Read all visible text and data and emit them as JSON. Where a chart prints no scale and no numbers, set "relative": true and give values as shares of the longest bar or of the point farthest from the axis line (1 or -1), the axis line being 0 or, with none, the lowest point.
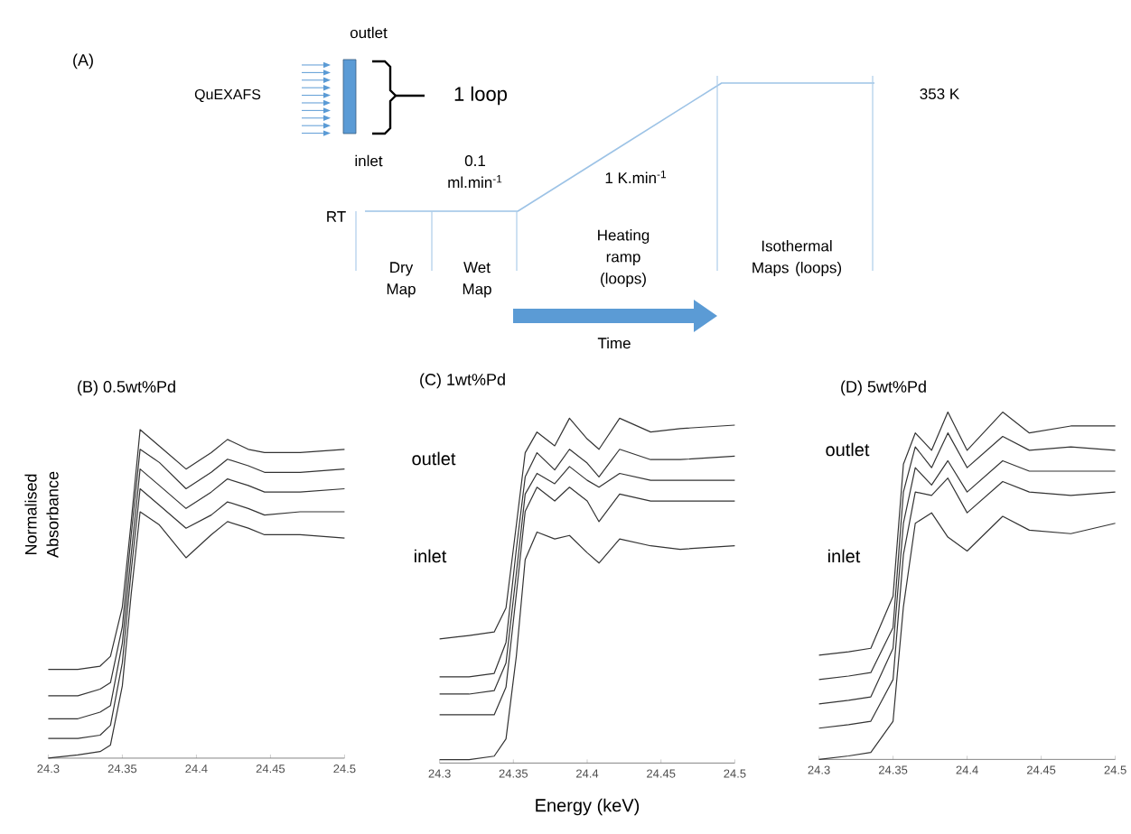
{
  "chart_data": [
    {
      "type": "line",
      "relative": true,
      "tick_labels": false,
      "categories": [
        null,
        null,
        null,
        null,
        null,
        null,
        null,
        null,
        null,
        null,
        null
      ],
      "series": [
        {
          "color": "#9dc3e6",
          "values": [
            0,
            0,
            0,
            0,
            0.25,
            0.5,
            0.75,
            1,
            1,
            1,
            1
          ]
        }
      ],
      "annotations": [
        "QuEXAFS",
        "outlet",
        "inlet",
        "1 loop",
        "0.1 ml.min$^{-1}$",
        "1 K.min$^{-1}$",
        "RT",
        "353 K",
        "Dry Map",
        "Wet Map",
        "Heating ramp (loops)",
        "Isothermal Maps (loops)",
        "Time",
        "(A)"
      ]
    },
    {
      "type": "line",
      "title": "(B) 0.5wt%Pd",
      "ylabel": "Normalised Absorbance",
      "relative": true,
      "tick_labels": "x",
      "x": [
        24.3,
        24.32,
        24.335,
        24.342,
        24.35,
        24.356,
        24.362,
        24.375,
        24.393,
        24.41,
        24.421,
        24.435,
        24.446,
        24.47,
        24.5
      ],
      "xlim": [
        24.3,
        24.5
      ],
      "xticks": [
        24.3,
        24.35,
        24.4,
        24.45,
        24.5
      ],
      "series": [
        {
          "color": "#333333",
          "values": [
            0.27,
            0.27,
            0.28,
            0.31,
            0.46,
            0.72,
            1.0,
            0.95,
            0.88,
            0.93,
            0.97,
            0.94,
            0.93,
            0.93,
            0.94
          ]
        },
        {
          "color": "#333333",
          "values": [
            0.19,
            0.19,
            0.21,
            0.23,
            0.4,
            0.68,
            0.94,
            0.9,
            0.82,
            0.87,
            0.91,
            0.89,
            0.87,
            0.87,
            0.88
          ]
        },
        {
          "color": "#333333",
          "values": [
            0.12,
            0.12,
            0.14,
            0.16,
            0.35,
            0.62,
            0.88,
            0.83,
            0.76,
            0.81,
            0.85,
            0.83,
            0.81,
            0.81,
            0.82
          ]
        },
        {
          "color": "#333333",
          "values": [
            0.06,
            0.06,
            0.07,
            0.1,
            0.29,
            0.57,
            0.82,
            0.77,
            0.7,
            0.74,
            0.78,
            0.76,
            0.74,
            0.75,
            0.75
          ]
        },
        {
          "color": "#333333",
          "values": [
            0,
            0.01,
            0.02,
            0.04,
            0.22,
            0.5,
            0.75,
            0.71,
            0.61,
            0.68,
            0.72,
            0.7,
            0.68,
            0.68,
            0.67
          ]
        }
      ]
    },
    {
      "type": "line",
      "title": "(C) 1wt%Pd",
      "xlabel": "Energy (keV)",
      "relative": true,
      "tick_labels": "x",
      "x": [
        24.3,
        24.32,
        24.337,
        24.345,
        24.352,
        24.358,
        24.366,
        24.378,
        24.388,
        24.4,
        24.408,
        24.422,
        24.443,
        24.463,
        24.5
      ],
      "xlim": [
        24.3,
        24.5
      ],
      "xticks": [
        24.3,
        24.35,
        24.4,
        24.45,
        24.5
      ],
      "annotations": [
        "outlet",
        "inlet"
      ],
      "series": [
        {
          "color": "#333333",
          "values": [
            0.36,
            0.37,
            0.38,
            0.45,
            0.69,
            0.9,
            0.96,
            0.92,
            1.0,
            0.94,
            0.91,
            1.0,
            0.96,
            0.97,
            0.98
          ]
        },
        {
          "color": "#333333",
          "values": [
            0.25,
            0.25,
            0.26,
            0.35,
            0.62,
            0.83,
            0.9,
            0.85,
            0.91,
            0.87,
            0.83,
            0.91,
            0.88,
            0.88,
            0.89
          ]
        },
        {
          "color": "#333333",
          "values": [
            0.2,
            0.2,
            0.21,
            0.29,
            0.55,
            0.78,
            0.84,
            0.81,
            0.86,
            0.82,
            0.8,
            0.84,
            0.82,
            0.82,
            0.82
          ]
        },
        {
          "color": "#333333",
          "values": [
            0.14,
            0.14,
            0.14,
            0.22,
            0.49,
            0.73,
            0.8,
            0.76,
            0.8,
            0.76,
            0.7,
            0.78,
            0.76,
            0.76,
            0.76
          ]
        },
        {
          "color": "#333333",
          "values": [
            0.01,
            0.01,
            0.02,
            0.07,
            0.31,
            0.59,
            0.67,
            0.65,
            0.66,
            0.61,
            0.58,
            0.65,
            0.63,
            0.62,
            0.63
          ]
        }
      ]
    },
    {
      "type": "line",
      "title": "(D) 5wt%Pd",
      "relative": true,
      "tick_labels": "x",
      "x": [
        24.3,
        24.32,
        24.335,
        24.35,
        24.357,
        24.365,
        24.376,
        24.387,
        24.4,
        24.424,
        24.442,
        24.47,
        24.5
      ],
      "xlim": [
        24.3,
        24.5
      ],
      "xticks": [
        24.3,
        24.35,
        24.4,
        24.45,
        24.5
      ],
      "annotations": [
        "outlet",
        "inlet"
      ],
      "series": [
        {
          "color": "#333333",
          "values": [
            0.3,
            0.31,
            0.32,
            0.47,
            0.85,
            0.94,
            0.89,
            1.0,
            0.89,
            1.0,
            0.94,
            0.96,
            0.96
          ]
        },
        {
          "color": "#333333",
          "values": [
            0.23,
            0.24,
            0.25,
            0.38,
            0.77,
            0.9,
            0.84,
            0.94,
            0.84,
            0.93,
            0.89,
            0.9,
            0.89
          ]
        },
        {
          "color": "#333333",
          "values": [
            0.16,
            0.17,
            0.18,
            0.32,
            0.68,
            0.84,
            0.79,
            0.86,
            0.77,
            0.86,
            0.83,
            0.83,
            0.83
          ]
        },
        {
          "color": "#333333",
          "values": [
            0.09,
            0.1,
            0.11,
            0.23,
            0.59,
            0.77,
            0.76,
            0.81,
            0.71,
            0.8,
            0.77,
            0.76,
            0.77
          ]
        },
        {
          "color": "#333333",
          "values": [
            0,
            0.01,
            0.02,
            0.11,
            0.44,
            0.68,
            0.71,
            0.64,
            0.6,
            0.7,
            0.66,
            0.65,
            0.68
          ]
        }
      ]
    }
  ]
}
